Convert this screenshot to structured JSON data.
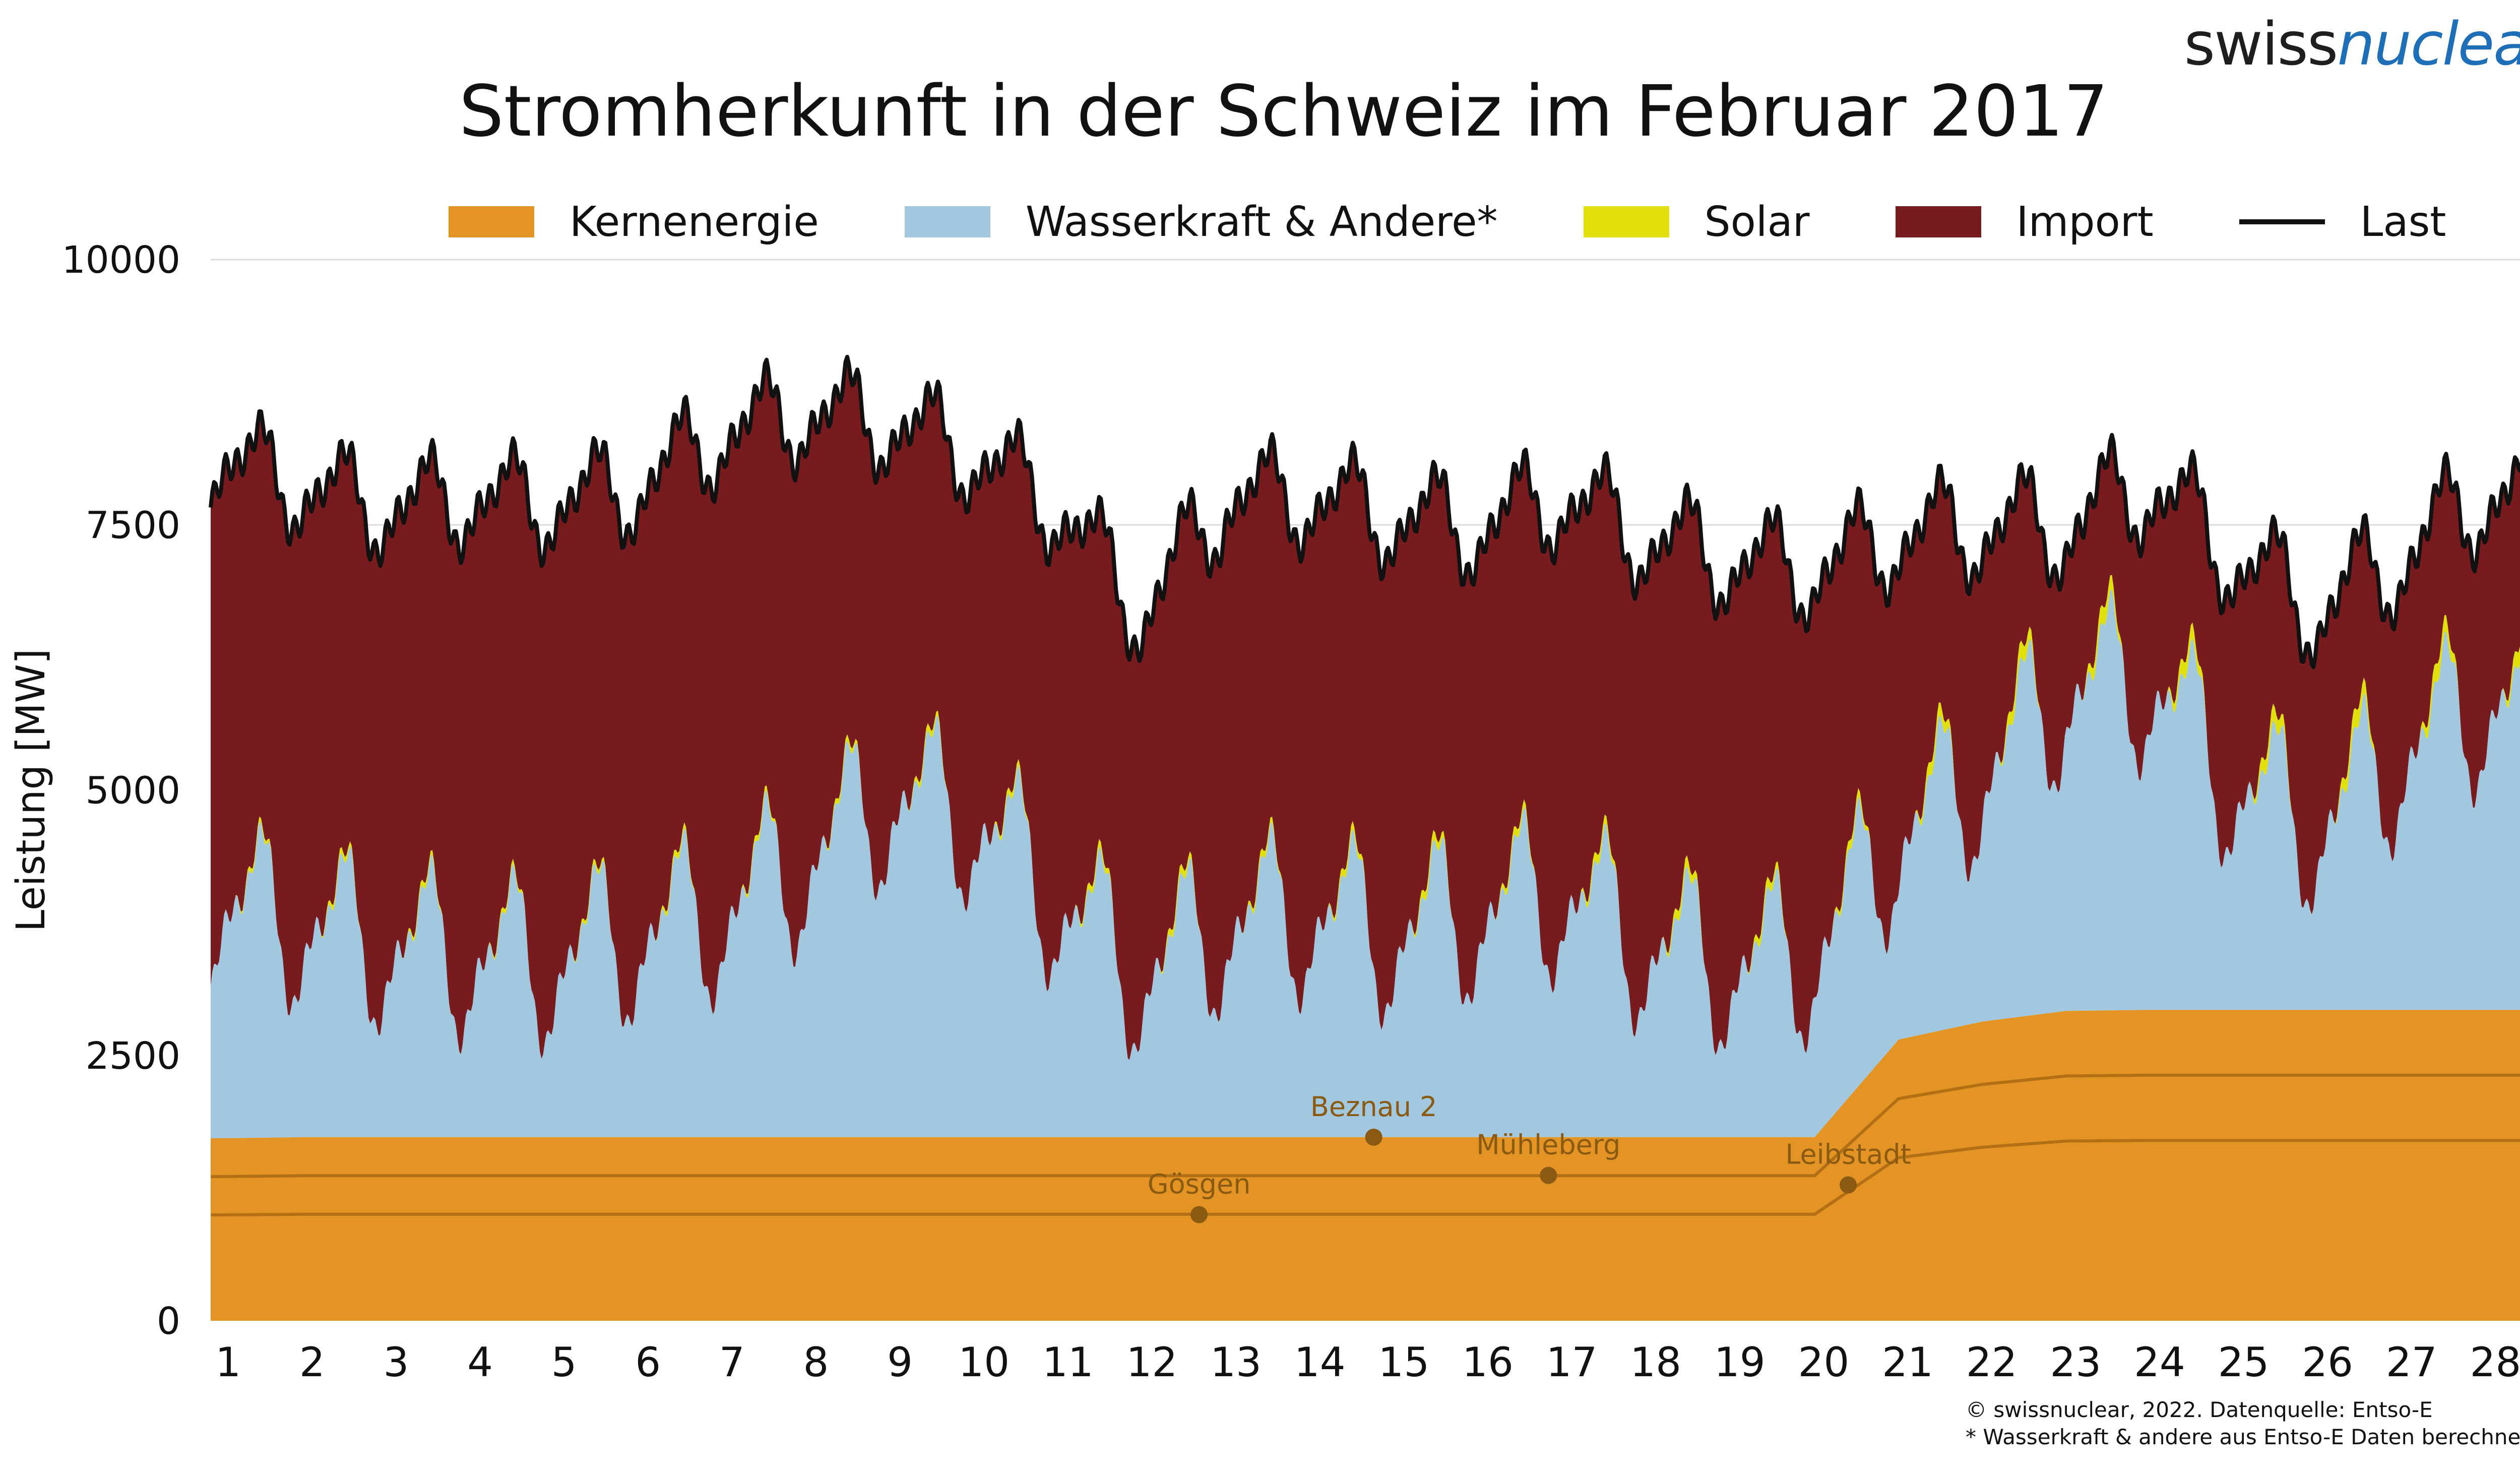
{
  "brand": {
    "part1": "swiss",
    "part2": "nuclear"
  },
  "colors": {
    "nuclear": "#e39424",
    "hydro": "#a2c8e0",
    "solar": "#e2e00a",
    "import": "#771b1e",
    "load": "#111111",
    "nuclear_line": "#b26f13",
    "plant_label": "#8a5a12"
  },
  "chart_data": {
    "type": "area",
    "title": "Stromherkunft in der Schweiz im Februar 2017",
    "ylabel": "Leistung [MW]",
    "xlabel": "",
    "ylim": [
      0,
      10000
    ],
    "yticks": [
      0,
      2500,
      5000,
      7500,
      10000
    ],
    "xticks": [
      "1",
      "2",
      "3",
      "4",
      "5",
      "6",
      "7",
      "8",
      "9",
      "10",
      "11",
      "12",
      "13",
      "14",
      "15",
      "16",
      "17",
      "18",
      "19",
      "20",
      "21",
      "22",
      "23",
      "24",
      "25",
      "26",
      "27",
      "28"
    ],
    "grid": true,
    "legend_position": "top",
    "legend": [
      "Kernenergie",
      "Wasserkraft & Andere*",
      "Solar",
      "Import",
      "Last"
    ],
    "series": [
      {
        "name": "Kernenergie",
        "x": [
          1,
          2,
          3,
          4,
          5,
          6,
          7,
          8,
          9,
          10,
          11,
          12,
          13,
          14,
          15,
          16,
          17,
          18,
          19,
          20,
          21,
          22,
          23,
          24,
          25,
          26,
          27,
          28
        ],
        "values": [
          1720,
          1730,
          1730,
          1730,
          1730,
          1730,
          1730,
          1730,
          1730,
          1730,
          1730,
          1730,
          1730,
          1730,
          1730,
          1730,
          1730,
          1730,
          1730,
          1730,
          2650,
          2820,
          2920,
          2930,
          2930,
          2930,
          2930,
          2930
        ]
      },
      {
        "name": "Wasserkraft & Andere*",
        "x": [
          1,
          2,
          3,
          4,
          5,
          6,
          7,
          8,
          9,
          10,
          11,
          12,
          13,
          14,
          15,
          16,
          17,
          18,
          19,
          20,
          21,
          22,
          23,
          24,
          25,
          26,
          27,
          28
        ],
        "values": [
          2200,
          2000,
          1800,
          1700,
          1650,
          1900,
          2100,
          2600,
          3200,
          3000,
          2200,
          1500,
          2000,
          2100,
          1900,
          2100,
          2300,
          1800,
          1600,
          1700,
          1900,
          2300,
          3000,
          3100,
          2100,
          1700,
          2400,
          2900
        ]
      },
      {
        "name": "Solar",
        "x": [
          1,
          2,
          3,
          4,
          5,
          6,
          7,
          8,
          9,
          10,
          11,
          12,
          13,
          14,
          15,
          16,
          17,
          18,
          19,
          20,
          21,
          22,
          23,
          24,
          25,
          26,
          27,
          28
        ],
        "values": [
          40,
          60,
          60,
          50,
          40,
          60,
          60,
          50,
          70,
          60,
          60,
          90,
          70,
          60,
          100,
          80,
          80,
          100,
          110,
          60,
          120,
          150,
          170,
          160,
          150,
          170,
          180,
          170
        ]
      },
      {
        "name": "Import",
        "x": [
          1,
          2,
          3,
          4,
          5,
          6,
          7,
          8,
          9,
          10,
          11,
          12,
          13,
          14,
          15,
          16,
          17,
          18,
          19,
          20,
          21,
          22,
          23,
          24,
          25,
          26,
          27,
          28
        ],
        "values": [
          4200,
          4100,
          4100,
          4300,
          4300,
          4200,
          4500,
          4200,
          3500,
          3400,
          3700,
          3400,
          4000,
          3900,
          3900,
          3600,
          3700,
          3800,
          3800,
          3600,
          2800,
          2300,
          1500,
          1800,
          2100,
          2000,
          1800,
          1900
        ]
      },
      {
        "name": "Last",
        "x": [
          1,
          2,
          3,
          4,
          5,
          6,
          7,
          8,
          9,
          10,
          11,
          12,
          13,
          14,
          15,
          16,
          17,
          18,
          19,
          20,
          21,
          22,
          23,
          24,
          25,
          26,
          27,
          28
        ],
        "values": [
          8200,
          7900,
          7700,
          7800,
          7700,
          7900,
          8400,
          8600,
          8500,
          8200,
          7700,
          6700,
          7800,
          7800,
          7600,
          7500,
          7800,
          7500,
          7300,
          7100,
          7500,
          7600,
          7600,
          8000,
          7100,
          6800,
          7300,
          7900
        ]
      }
    ],
    "annotations": [
      {
        "text": "Beznau 2",
        "x": 14.75,
        "y": 1730
      },
      {
        "text": "Gösgen",
        "x": 12.67,
        "y": 1000
      },
      {
        "text": "Mühleberg",
        "x": 16.83,
        "y": 1370
      },
      {
        "text": "Leibstadt",
        "x": 20.4,
        "y": 1280
      }
    ]
  },
  "footnotes": [
    "© swissnuclear, 2022. Datenquelle: Entso-E",
    "* Wasserkraft & andere aus Entso-E Daten berechnet"
  ]
}
